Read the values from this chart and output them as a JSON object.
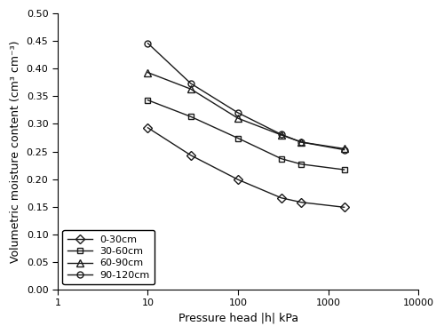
{
  "x_values": [
    10,
    30,
    100,
    300,
    500,
    1500
  ],
  "series": [
    {
      "label": "0-30cm",
      "y": [
        0.293,
        0.243,
        0.199,
        0.166,
        0.158,
        0.149
      ],
      "marker": "D",
      "markersize": 5,
      "color": "#1a1a1a",
      "fillstyle": "none"
    },
    {
      "label": "30-60cm",
      "y": [
        0.343,
        0.313,
        0.274,
        0.237,
        0.227,
        0.217
      ],
      "marker": "s",
      "markersize": 5,
      "color": "#1a1a1a",
      "fillstyle": "none"
    },
    {
      "label": "60-90cm",
      "y": [
        0.393,
        0.363,
        0.31,
        0.28,
        0.267,
        0.255
      ],
      "marker": "^",
      "markersize": 6,
      "color": "#1a1a1a",
      "fillstyle": "none"
    },
    {
      "label": "90-120cm",
      "y": [
        0.446,
        0.373,
        0.32,
        0.281,
        0.267,
        0.253
      ],
      "marker": "o",
      "markersize": 5,
      "color": "#1a1a1a",
      "fillstyle": "none"
    }
  ],
  "xlabel": "Pressure head |h| kPa",
  "ylabel": "Volumetric moisture content (cm³ cm⁻³)",
  "xlim": [
    1,
    10000
  ],
  "ylim": [
    0.0,
    0.5
  ],
  "yticks": [
    0.0,
    0.05,
    0.1,
    0.15,
    0.2,
    0.25,
    0.3,
    0.35,
    0.4,
    0.45,
    0.5
  ],
  "xticks": [
    1,
    10,
    100,
    1000,
    10000
  ],
  "legend_loc": "lower left",
  "background_color": "#ffffff"
}
